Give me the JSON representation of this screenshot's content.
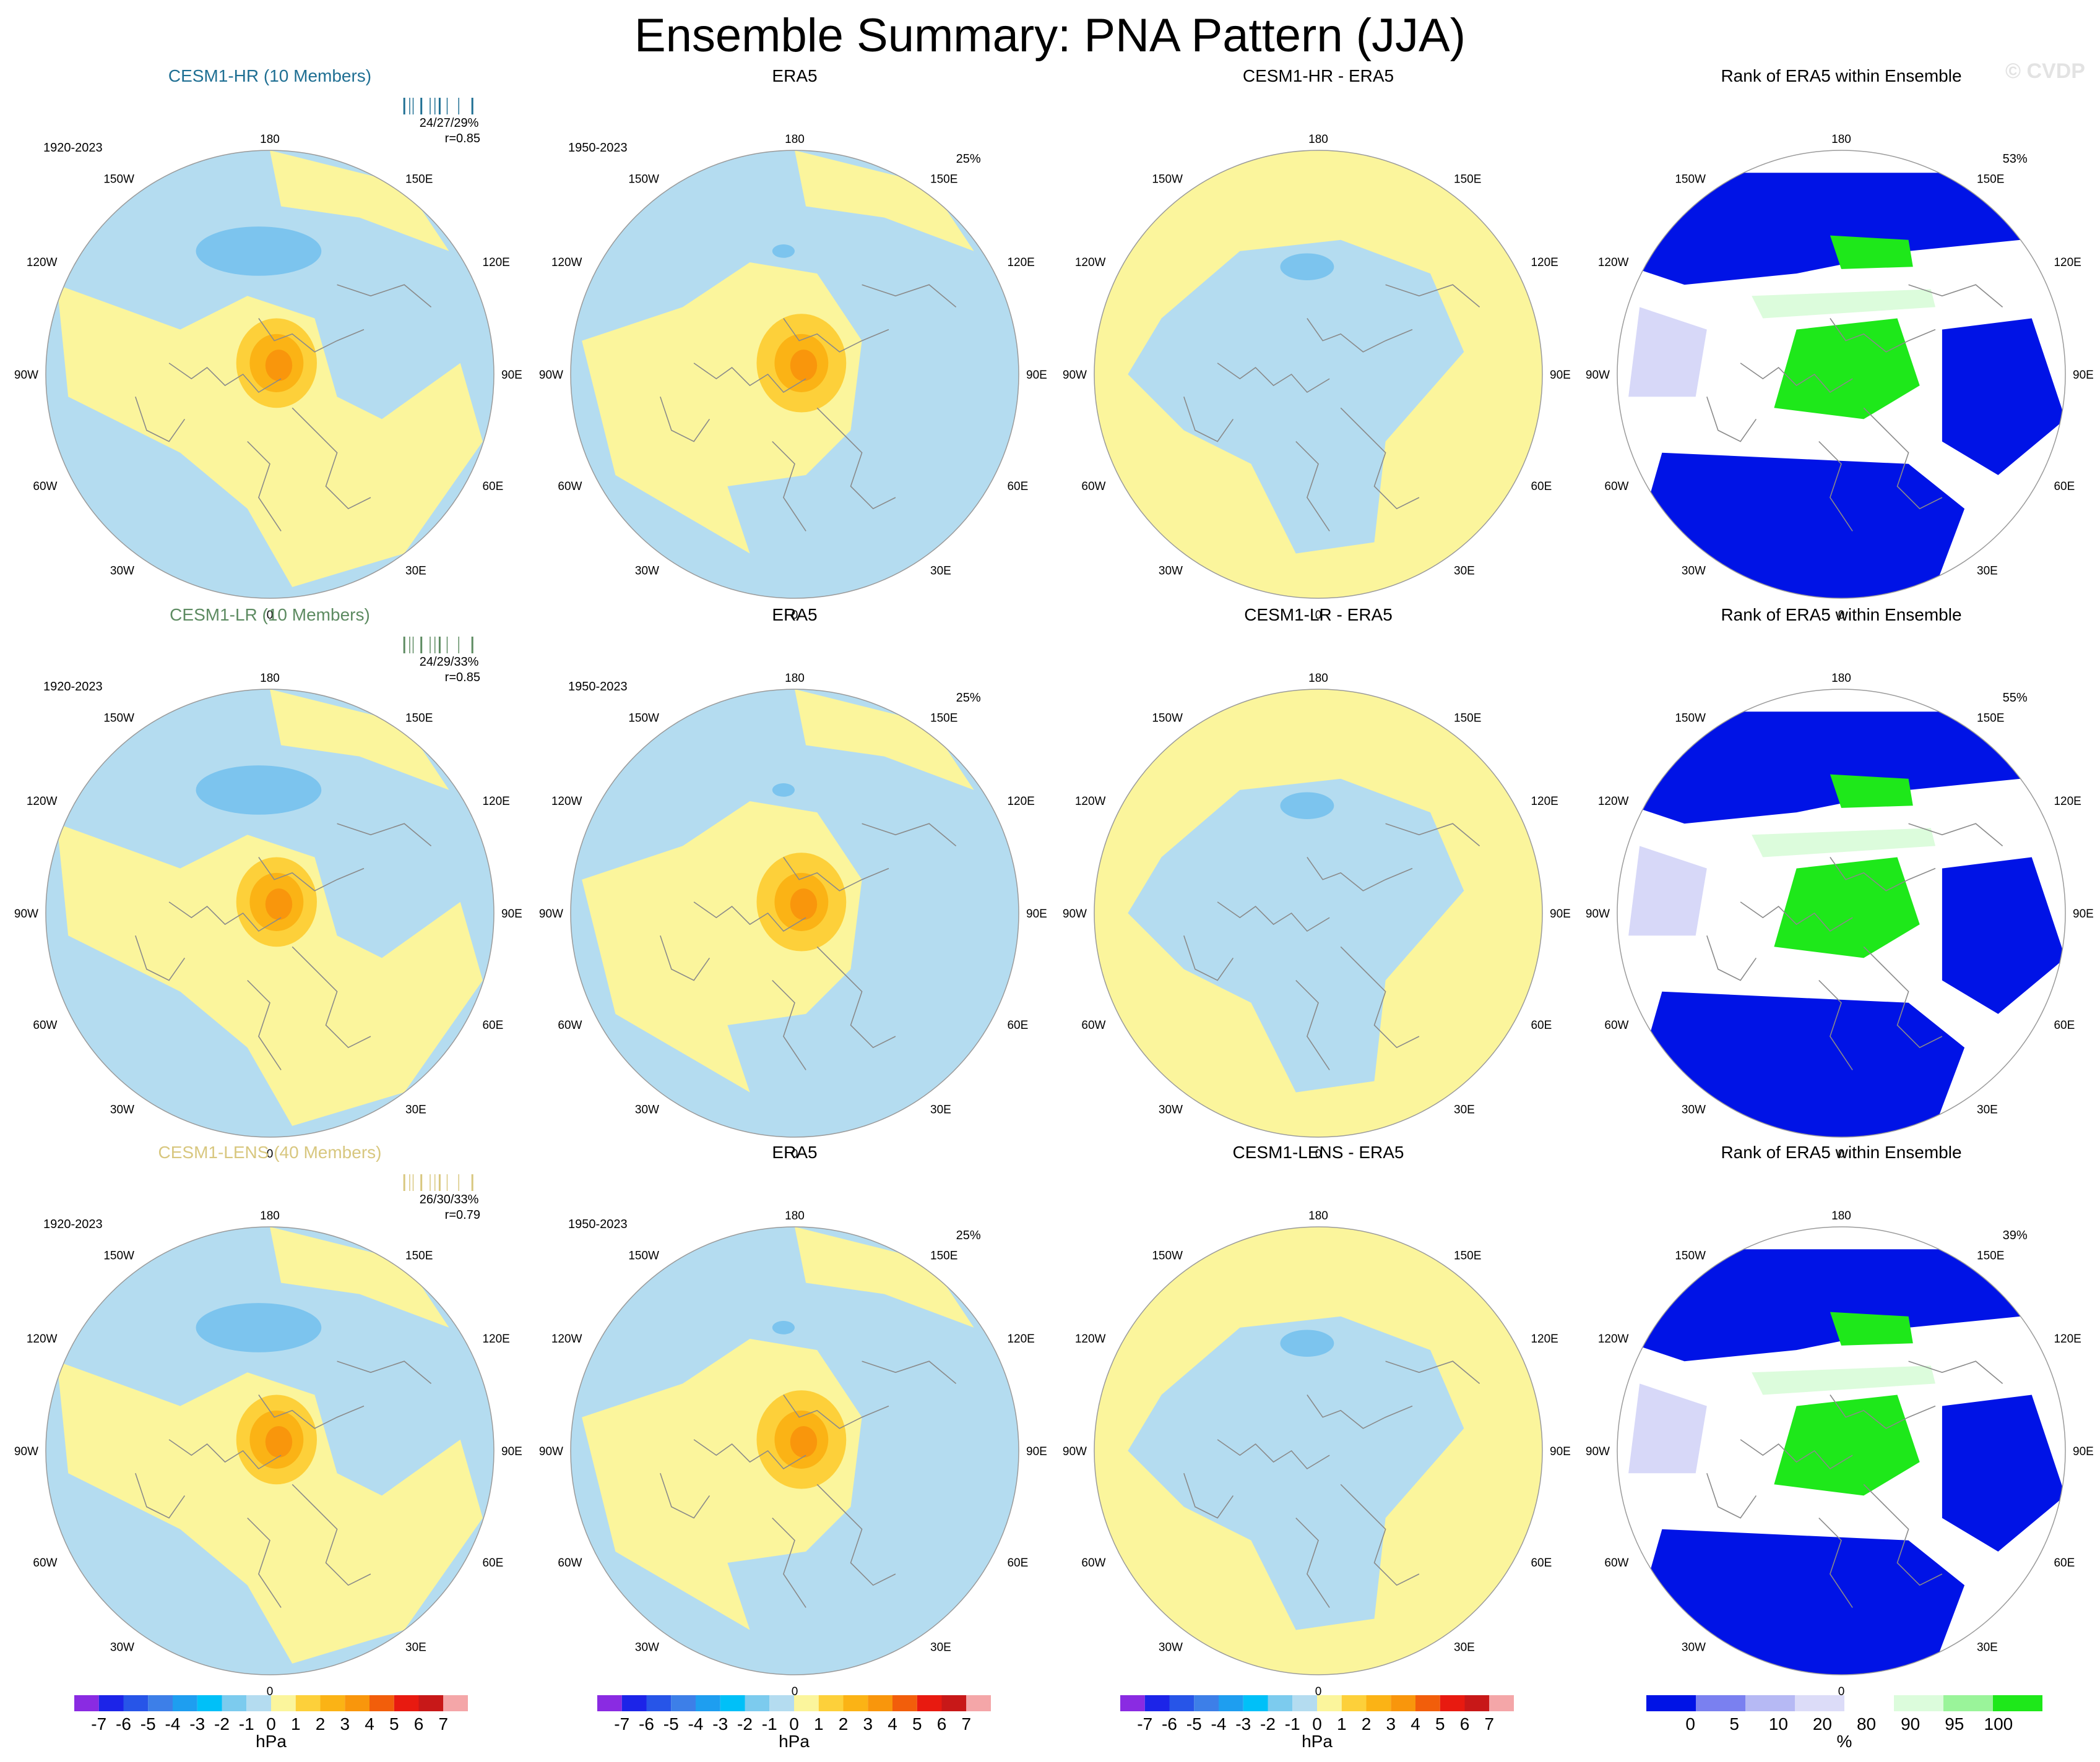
{
  "title": "Ensemble Summary: PNA Pattern (JJA)",
  "watermark": "© CVDP",
  "colors": {
    "ocean_blue": "#b4dcf0",
    "land_yellow": "#fbf59c",
    "orange1": "#fdd03a",
    "orange2": "#fbb315",
    "orange3": "#f9960c",
    "blue_low1": "#7cc4ee",
    "rank_blue": "#0013e6",
    "rank_lav": "#d7d8f8",
    "rank_lightgreen": "#dcfcdc",
    "rank_green": "#1ee81a"
  },
  "rows": [
    {
      "model_title": "CESM1-HR (10 Members)",
      "model_title_color": "#1f6f93",
      "model_years": "1920-2023",
      "stats": "24/27/29%",
      "corr": "r=0.85",
      "era_title": "ERA5",
      "era_years": "1950-2023",
      "era_pct": "25%",
      "diff_title": "CESM1-HR - ERA5",
      "rank_title": "Rank of ERA5 within Ensemble",
      "rank_pct": "53%"
    },
    {
      "model_title": "CESM1-LR (10 Members)",
      "model_title_color": "#5d8b61",
      "model_years": "1920-2023",
      "stats": "24/29/33%",
      "corr": "r=0.85",
      "era_title": "ERA5",
      "era_years": "1950-2023",
      "era_pct": "25%",
      "diff_title": "CESM1-LR - ERA5",
      "rank_title": "Rank of ERA5 within Ensemble",
      "rank_pct": "55%"
    },
    {
      "model_title": "CESM1-LENS (40 Members)",
      "model_title_color": "#d8c77f",
      "model_years": "1920-2023",
      "stats": "26/30/33%",
      "corr": "r=0.79",
      "era_title": "ERA5",
      "era_years": "1950-2023",
      "era_pct": "25%",
      "diff_title": "CESM1-LENS - ERA5",
      "rank_title": "Rank of ERA5 within Ensemble",
      "rank_pct": "39%"
    }
  ],
  "lon_labels": {
    "top": "180",
    "bottom": "0",
    "upper_left": "150W",
    "upper_right": "150E",
    "left_upper": "120W",
    "right_upper": "120E",
    "left": "90W",
    "right": "90E",
    "left_lower": "60W",
    "right_lower": "60E",
    "lower_left": "30W",
    "lower_right": "30E"
  },
  "chart_data": [
    {
      "type": "heatmap",
      "title": "",
      "colorbar_unit": "hPa",
      "tick_labels": [
        "-7",
        "-6",
        "-5",
        "-4",
        "-3",
        "-2",
        "-1",
        "0",
        "1",
        "2",
        "3",
        "4",
        "5",
        "6",
        "7"
      ],
      "colors": [
        "#8a2be2",
        "#1c24e8",
        "#2755e8",
        "#3d7fe8",
        "#1e9ef0",
        "#00c0f8",
        "#7ccbee",
        "#b4dcf0",
        "#fbf59c",
        "#fdd03a",
        "#fbb315",
        "#f9960c",
        "#f25e0b",
        "#e81a10",
        "#c81818",
        "#f4a6a8"
      ]
    },
    {
      "type": "heatmap",
      "title": "",
      "colorbar_unit": "%",
      "tick_labels": [
        "0",
        "5",
        "10",
        "20",
        "80",
        "90",
        "95",
        "100"
      ],
      "colors": [
        "#0013e6",
        "#7a80f0",
        "#b6b9f4",
        "#dcdcf8",
        "#ffffff",
        "#dcfcdc",
        "#9af49a",
        "#1ee81a"
      ]
    }
  ]
}
